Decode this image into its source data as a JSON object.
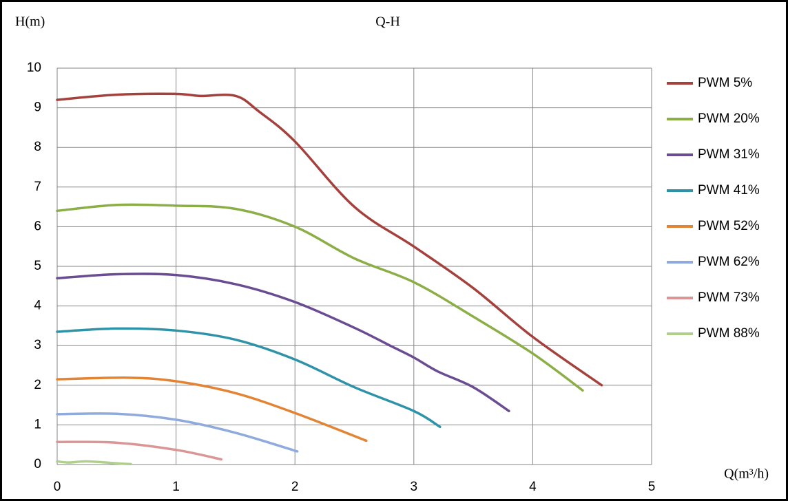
{
  "chart_data": {
    "type": "line",
    "title": "Q-H",
    "y_label": "H(m)",
    "x_label": "Q(m³/h)",
    "xlim": [
      0,
      5
    ],
    "xticks": [
      0,
      1,
      2,
      3,
      4,
      5
    ],
    "ylim": [
      0,
      10
    ],
    "yticks": [
      0,
      1,
      2,
      3,
      4,
      5,
      6,
      7,
      8,
      9,
      10
    ],
    "grid": true,
    "legend": "right",
    "series": [
      {
        "name": "PWM 5%",
        "color": "#a5413d",
        "x": [
          0,
          0.5,
          1,
          1.2,
          1.5,
          1.7,
          2,
          2.5,
          3,
          3.5,
          4,
          4.58
        ],
        "values": [
          9.2,
          9.33,
          9.35,
          9.3,
          9.3,
          8.9,
          8.15,
          6.5,
          5.5,
          4.45,
          3.22,
          2.0
        ]
      },
      {
        "name": "PWM 20%",
        "color": "#8bae47",
        "x": [
          0,
          0.5,
          1,
          1.5,
          2,
          2.5,
          3,
          3.5,
          4,
          4.42
        ],
        "values": [
          6.4,
          6.55,
          6.53,
          6.45,
          6.0,
          5.2,
          4.6,
          3.73,
          2.8,
          1.87
        ]
      },
      {
        "name": "PWM 31%",
        "color": "#6a4c93",
        "x": [
          0,
          0.5,
          1,
          1.5,
          2,
          2.5,
          2.8,
          3,
          3.2,
          3.5,
          3.8
        ],
        "values": [
          4.7,
          4.8,
          4.78,
          4.55,
          4.1,
          3.45,
          3.0,
          2.7,
          2.35,
          1.95,
          1.35
        ]
      },
      {
        "name": "PWM 41%",
        "color": "#2f93a8",
        "x": [
          0,
          0.5,
          1,
          1.5,
          2,
          2.5,
          3,
          3.22
        ],
        "values": [
          3.35,
          3.43,
          3.38,
          3.15,
          2.65,
          1.95,
          1.35,
          0.95
        ]
      },
      {
        "name": "PWM 52%",
        "color": "#e38434",
        "x": [
          0,
          0.6,
          1,
          1.5,
          2,
          2.6
        ],
        "values": [
          2.15,
          2.19,
          2.1,
          1.8,
          1.3,
          0.6
        ]
      },
      {
        "name": "PWM 62%",
        "color": "#8faadc",
        "x": [
          0,
          0.5,
          1,
          1.5,
          2.02
        ],
        "values": [
          1.27,
          1.28,
          1.13,
          0.8,
          0.33
        ]
      },
      {
        "name": "PWM 73%",
        "color": "#d99694",
        "x": [
          0,
          0.5,
          1,
          1.38
        ],
        "values": [
          0.57,
          0.55,
          0.37,
          0.13
        ]
      },
      {
        "name": "PWM 88%",
        "color": "#b0cf8b",
        "x": [
          0,
          0.1,
          0.25,
          0.5,
          0.62
        ],
        "values": [
          0.08,
          0.05,
          0.08,
          0.03,
          0.01
        ]
      }
    ]
  }
}
